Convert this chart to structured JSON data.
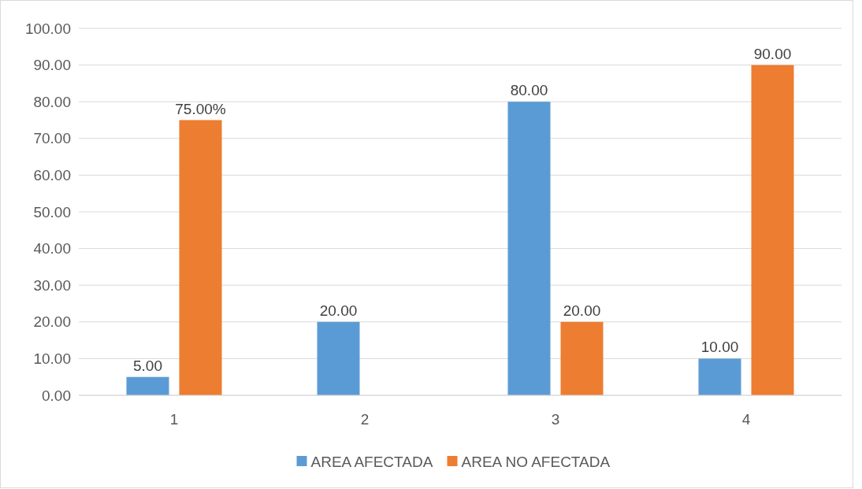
{
  "chart_data": {
    "type": "bar",
    "categories": [
      "1",
      "2",
      "3",
      "4"
    ],
    "series": [
      {
        "name": "AREA AFECTADA",
        "color": "#5b9bd5",
        "values": [
          5,
          20,
          80,
          10
        ],
        "value_labels": [
          "5.00",
          "20.00",
          "80.00",
          "10.00"
        ]
      },
      {
        "name": "AREA NO AFECTADA",
        "color": "#ed7d31",
        "values": [
          75,
          null,
          20,
          90
        ],
        "value_labels": [
          "75.00%",
          null,
          "20.00",
          "90.00"
        ]
      }
    ],
    "ylim": [
      0,
      100
    ],
    "yticks": [
      {
        "value": 0,
        "label": "0.00"
      },
      {
        "value": 10,
        "label": "10.00"
      },
      {
        "value": 20,
        "label": "20.00"
      },
      {
        "value": 30,
        "label": "30.00"
      },
      {
        "value": 40,
        "label": "40.00"
      },
      {
        "value": 50,
        "label": "50.00"
      },
      {
        "value": 60,
        "label": "60.00"
      },
      {
        "value": 70,
        "label": "70.00"
      },
      {
        "value": 80,
        "label": "80.00"
      },
      {
        "value": 90,
        "label": "90.00"
      },
      {
        "value": 100,
        "label": "100.00"
      }
    ],
    "grid": "y",
    "legend": "bottom"
  }
}
